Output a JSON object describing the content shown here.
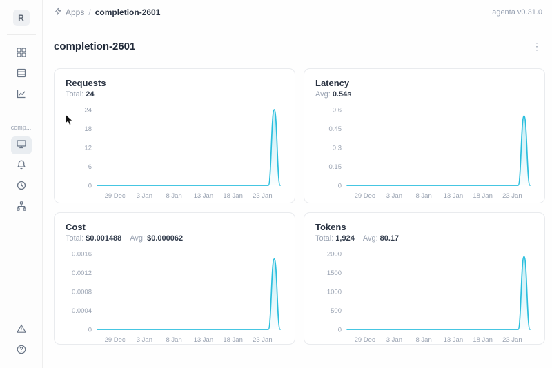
{
  "topbar": {
    "breadcrumb": {
      "root": "Apps",
      "separator": "/",
      "current": "completion-2601"
    },
    "version": "agenta v0.31.0"
  },
  "sidebar": {
    "avatar_letter": "R",
    "workspace_nav_icons": [
      "apps-grid",
      "test-sets-table",
      "observability-line-chart"
    ],
    "app_label_truncated": "comp...",
    "app_nav_icons": [
      "playground-monitor",
      "evaluations-bell",
      "history-clock",
      "traces-tree"
    ],
    "bottom_icons": [
      "warning-triangle",
      "help-circle"
    ],
    "selected_item": "playground-monitor"
  },
  "page": {
    "title": "completion-2601"
  },
  "colors": {
    "accent_line": "#2cbfde",
    "card_border": "#e9ebee",
    "muted_text": "#9aa3b2",
    "dark_text": "#2a3342"
  },
  "chart_data": [
    {
      "type": "area",
      "title": "Requests",
      "stats": [
        {
          "label": "Total:",
          "value": "24"
        }
      ],
      "x_tick_labels": [
        "29 Dec",
        "3 Jan",
        "8 Jan",
        "13 Jan",
        "18 Jan",
        "23 Jan"
      ],
      "x_tick_indices": [
        3,
        8,
        13,
        18,
        23,
        28
      ],
      "values": [
        0,
        0,
        0,
        0,
        0,
        0,
        0,
        0,
        0,
        0,
        0,
        0,
        0,
        0,
        0,
        0,
        0,
        0,
        0,
        0,
        0,
        0,
        0,
        0,
        0,
        0,
        0,
        0,
        0,
        0,
        24,
        0
      ],
      "peak_date": "25 Jan",
      "y_ticks": [
        0,
        6,
        12,
        18,
        24
      ],
      "y_tick_labels": [
        "0",
        "6",
        "12",
        "18",
        "24"
      ],
      "ylim": [
        0,
        24
      ],
      "line_color": "#2cbfde",
      "grid": false,
      "legend": false
    },
    {
      "type": "area",
      "title": "Latency",
      "stats": [
        {
          "label": "Avg:",
          "value": "0.54s"
        }
      ],
      "x_tick_labels": [
        "29 Dec",
        "3 Jan",
        "8 Jan",
        "13 Jan",
        "18 Jan",
        "23 Jan"
      ],
      "x_tick_indices": [
        3,
        8,
        13,
        18,
        23,
        28
      ],
      "values": [
        0,
        0,
        0,
        0,
        0,
        0,
        0,
        0,
        0,
        0,
        0,
        0,
        0,
        0,
        0,
        0,
        0,
        0,
        0,
        0,
        0,
        0,
        0,
        0,
        0,
        0,
        0,
        0,
        0,
        0,
        0.55,
        0
      ],
      "peak_date": "25 Jan",
      "y_ticks": [
        0,
        0.15,
        0.3,
        0.45,
        0.6
      ],
      "y_tick_labels": [
        "0",
        "0.15",
        "0.3",
        "0.45",
        "0.6"
      ],
      "ylim": [
        0,
        0.6
      ],
      "line_color": "#2cbfde",
      "grid": false,
      "legend": false
    },
    {
      "type": "area",
      "title": "Cost",
      "stats": [
        {
          "label": "Total:",
          "value": "$0.001488"
        },
        {
          "label": "Avg:",
          "value": "$0.000062"
        }
      ],
      "x_tick_labels": [
        "29 Dec",
        "3 Jan",
        "8 Jan",
        "13 Jan",
        "18 Jan",
        "23 Jan"
      ],
      "x_tick_indices": [
        3,
        8,
        13,
        18,
        23,
        28
      ],
      "values": [
        0,
        0,
        0,
        0,
        0,
        0,
        0,
        0,
        0,
        0,
        0,
        0,
        0,
        0,
        0,
        0,
        0,
        0,
        0,
        0,
        0,
        0,
        0,
        0,
        0,
        0,
        0,
        0,
        0,
        0,
        0.001488,
        0
      ],
      "peak_date": "25 Jan",
      "y_ticks": [
        0,
        0.0004,
        0.0008,
        0.0012,
        0.0016
      ],
      "y_tick_labels": [
        "0",
        "0.0004",
        "0.0008",
        "0.0012",
        "0.0016"
      ],
      "ylim": [
        0,
        0.0016
      ],
      "line_color": "#2cbfde",
      "grid": false,
      "legend": false
    },
    {
      "type": "area",
      "title": "Tokens",
      "stats": [
        {
          "label": "Total:",
          "value": "1,924"
        },
        {
          "label": "Avg:",
          "value": "80.17"
        }
      ],
      "x_tick_labels": [
        "29 Dec",
        "3 Jan",
        "8 Jan",
        "13 Jan",
        "18 Jan",
        "23 Jan"
      ],
      "x_tick_indices": [
        3,
        8,
        13,
        18,
        23,
        28
      ],
      "values": [
        0,
        0,
        0,
        0,
        0,
        0,
        0,
        0,
        0,
        0,
        0,
        0,
        0,
        0,
        0,
        0,
        0,
        0,
        0,
        0,
        0,
        0,
        0,
        0,
        0,
        0,
        0,
        0,
        0,
        0,
        1924,
        0
      ],
      "peak_date": "25 Jan",
      "y_ticks": [
        0,
        500,
        1000,
        1500,
        2000
      ],
      "y_tick_labels": [
        "0",
        "500",
        "1000",
        "1500",
        "2000"
      ],
      "ylim": [
        0,
        2000
      ],
      "line_color": "#2cbfde",
      "grid": false,
      "legend": false
    }
  ]
}
